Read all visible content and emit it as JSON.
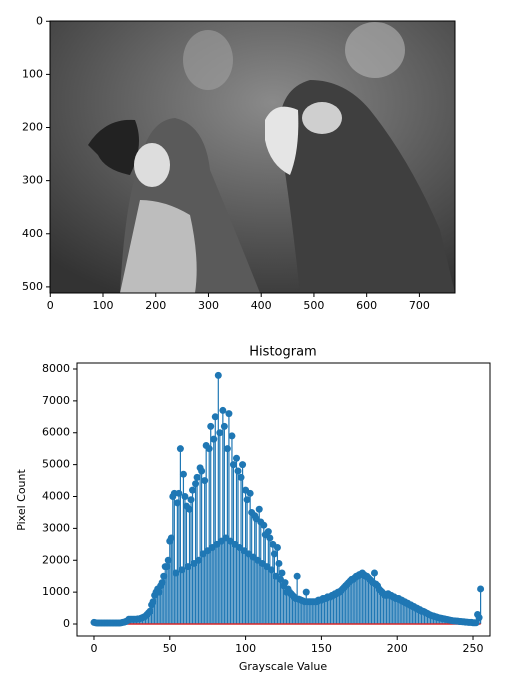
{
  "chart_data": [
    {
      "type": "image",
      "xlim": [
        -0.5,
        767.5
      ],
      "ylim": [
        511.5,
        -0.5
      ],
      "xticks": [
        0,
        100,
        200,
        300,
        400,
        500,
        600,
        700
      ],
      "yticks": [
        0,
        100,
        200,
        300,
        400,
        500
      ]
    },
    {
      "type": "stem",
      "title": "Histogram",
      "x_label": "Grayscale Value",
      "y_label": "Pixel Count",
      "color": "#1f77b4",
      "baseline_color": "#d62728",
      "xlim": [
        -11.2,
        261.2
      ],
      "ylim": [
        -376,
        8188
      ],
      "xticks": [
        0,
        50,
        100,
        150,
        200,
        250
      ],
      "yticks": [
        0,
        1000,
        2000,
        3000,
        4000,
        5000,
        6000,
        7000,
        8000
      ],
      "x": [
        0,
        1,
        2,
        3,
        4,
        5,
        6,
        7,
        8,
        9,
        10,
        11,
        12,
        13,
        14,
        15,
        16,
        17,
        18,
        19,
        20,
        21,
        22,
        23,
        24,
        25,
        26,
        27,
        28,
        29,
        30,
        31,
        32,
        33,
        34,
        35,
        36,
        37,
        38,
        39,
        40,
        41,
        42,
        43,
        44,
        45,
        46,
        47,
        48,
        49,
        50,
        51,
        52,
        53,
        54,
        55,
        56,
        57,
        58,
        59,
        60,
        61,
        62,
        63,
        64,
        65,
        66,
        67,
        68,
        69,
        70,
        71,
        72,
        73,
        74,
        75,
        76,
        77,
        78,
        79,
        80,
        81,
        82,
        83,
        84,
        85,
        86,
        87,
        88,
        89,
        90,
        91,
        92,
        93,
        94,
        95,
        96,
        97,
        98,
        99,
        100,
        101,
        102,
        103,
        104,
        105,
        106,
        107,
        108,
        109,
        110,
        111,
        112,
        113,
        114,
        115,
        116,
        117,
        118,
        119,
        120,
        121,
        122,
        123,
        124,
        125,
        126,
        127,
        128,
        129,
        130,
        131,
        132,
        133,
        134,
        135,
        136,
        137,
        138,
        139,
        140,
        141,
        142,
        143,
        144,
        145,
        146,
        147,
        148,
        149,
        150,
        151,
        152,
        153,
        154,
        155,
        156,
        157,
        158,
        159,
        160,
        161,
        162,
        163,
        164,
        165,
        166,
        167,
        168,
        169,
        170,
        171,
        172,
        173,
        174,
        175,
        176,
        177,
        178,
        179,
        180,
        181,
        182,
        183,
        184,
        185,
        186,
        187,
        188,
        189,
        190,
        191,
        192,
        193,
        194,
        195,
        196,
        197,
        198,
        199,
        200,
        201,
        202,
        203,
        204,
        205,
        206,
        207,
        208,
        209,
        210,
        211,
        212,
        213,
        214,
        215,
        216,
        217,
        218,
        219,
        220,
        221,
        222,
        223,
        224,
        225,
        226,
        227,
        228,
        229,
        230,
        231,
        232,
        233,
        234,
        235,
        236,
        237,
        238,
        239,
        240,
        241,
        242,
        243,
        244,
        245,
        246,
        247,
        248,
        249,
        250,
        251,
        252,
        253,
        254,
        255
      ],
      "values": [
        50,
        40,
        30,
        30,
        30,
        30,
        30,
        30,
        30,
        30,
        30,
        30,
        30,
        30,
        30,
        30,
        30,
        30,
        40,
        50,
        60,
        80,
        100,
        150,
        150,
        150,
        150,
        150,
        150,
        160,
        160,
        180,
        200,
        220,
        250,
        300,
        350,
        400,
        600,
        700,
        900,
        1000,
        1100,
        1000,
        1200,
        1300,
        1500,
        1800,
        1800,
        2000,
        2600,
        2700,
        4000,
        4100,
        1600,
        3800,
        4100,
        5500,
        1700,
        4700,
        4000,
        3700,
        1800,
        3600,
        3900,
        4200,
        1900,
        4400,
        4600,
        2000,
        4900,
        4800,
        2200,
        4500,
        5600,
        2300,
        5500,
        6200,
        2400,
        5800,
        6500,
        2500,
        7800,
        6000,
        2600,
        6700,
        6200,
        2700,
        5500,
        6600,
        2600,
        5900,
        5000,
        2500,
        5200,
        4800,
        2400,
        4600,
        5000,
        2300,
        4200,
        3900,
        2200,
        4100,
        3500,
        2100,
        3400,
        3300,
        2000,
        3600,
        3200,
        1900,
        3100,
        2800,
        1800,
        2900,
        2700,
        1700,
        2500,
        2200,
        1500,
        2400,
        1900,
        1400,
        1600,
        1200,
        1300,
        1000,
        1100,
        1000,
        950,
        900,
        850,
        800,
        1500,
        780,
        760,
        740,
        720,
        700,
        1000,
        700,
        700,
        700,
        700,
        700,
        700,
        700,
        750,
        750,
        750,
        800,
        800,
        800,
        850,
        850,
        850,
        900,
        900,
        950,
        950,
        1000,
        1000,
        1050,
        1100,
        1150,
        1200,
        1250,
        1300,
        1350,
        1400,
        1400,
        1450,
        1500,
        1500,
        1550,
        1550,
        1600,
        1550,
        1500,
        1500,
        1450,
        1400,
        1350,
        1300,
        1600,
        1250,
        1200,
        1100,
        1050,
        1000,
        950,
        900,
        900,
        950,
        900,
        900,
        850,
        850,
        800,
        800,
        800,
        750,
        750,
        700,
        700,
        650,
        650,
        600,
        600,
        550,
        550,
        500,
        500,
        450,
        450,
        400,
        400,
        380,
        350,
        330,
        300,
        280,
        260,
        250,
        230,
        220,
        200,
        190,
        180,
        170,
        160,
        150,
        140,
        130,
        120,
        110,
        100,
        100,
        90,
        90,
        80,
        80,
        70,
        70,
        60,
        60,
        50,
        50,
        50,
        40,
        40,
        40,
        300,
        200,
        1100
      ]
    }
  ]
}
